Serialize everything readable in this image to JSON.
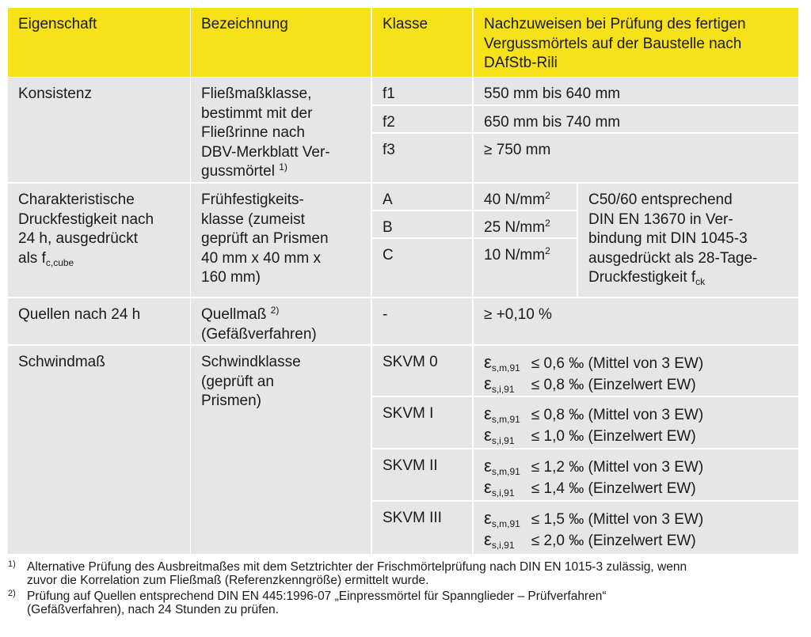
{
  "table": {
    "header": {
      "eigenschaft": [
        "Eigenschaft"
      ],
      "bezeichnung": [
        "Bezeichnung"
      ],
      "klasse": [
        "Klasse"
      ],
      "nachweis": [
        "Nachzuweisen bei Prüfung des fertigen",
        "Vergussmörtels auf der Baustelle nach",
        "DAfStb-Rili"
      ]
    },
    "konsistenz": {
      "eigenschaft": [
        "Konsistenz"
      ],
      "bezeichnung": [
        "Fließmaßklasse,",
        "bestimmt mit der",
        "Fließrinne nach",
        "DBV-Merkblatt Ver-",
        [
          "gussmörtel ",
          {
            "sup": "1)"
          }
        ]
      ],
      "klassen": [
        {
          "klasse": [
            "f1"
          ],
          "nachweis": [
            "550 mm bis 640 mm"
          ]
        },
        {
          "klasse": [
            "f2"
          ],
          "nachweis": [
            "650 mm bis 740 mm"
          ]
        },
        {
          "klasse": [
            "f3"
          ],
          "nachweis": [
            "≥ 750 mm"
          ]
        }
      ]
    },
    "druckfestigkeit": {
      "eigenschaft": [
        "Charakteristische",
        "Druckfestigkeit nach",
        "24 h, ausgedrückt",
        [
          "als f",
          {
            "sub": "c,cube"
          }
        ]
      ],
      "bezeichnung": [
        "Frühfestigkeits-",
        "klasse (zumeist",
        "geprüft an Prismen",
        "40 mm x 40 mm x",
        "160 mm)"
      ],
      "klassen": [
        {
          "klasse": [
            "A"
          ],
          "nachweis": [
            [
              "40 N/mm",
              {
                "sup": "2"
              }
            ]
          ]
        },
        {
          "klasse": [
            "B"
          ],
          "nachweis": [
            [
              "25 N/mm",
              {
                "sup": "2"
              }
            ]
          ]
        },
        {
          "klasse": [
            "C"
          ],
          "nachweis": [
            [
              "10 N/mm",
              {
                "sup": "2"
              }
            ]
          ]
        }
      ],
      "hinweis": [
        "C50/60 entsprechend",
        "DIN EN 13670 in Ver-",
        "bindung mit DIN 1045-3",
        "ausgedrückt als 28-Tage-",
        [
          "Druckfestigkeit f",
          {
            "sub": "ck"
          }
        ]
      ]
    },
    "quellen": {
      "eigenschaft": [
        "Quellen nach 24 h"
      ],
      "bezeichnung": [
        [
          "Quellmaß ",
          {
            "sup": "2)"
          }
        ],
        "(Gefäßverfahren)"
      ],
      "klassen": [
        {
          "klasse": [
            "-"
          ],
          "nachweis": [
            "≥ +0,10 %"
          ]
        }
      ]
    },
    "schwindmass": {
      "eigenschaft": [
        "Schwindmaß"
      ],
      "bezeichnung": [
        "Schwindklasse",
        "(geprüft an",
        "Prismen)"
      ],
      "klassen": [
        {
          "klasse": [
            "SKVM 0"
          ],
          "nachweis": [
            [
              "ε",
              {
                "sub": "s,m,91"
              },
              "≤ 0,6 ‰ (Mittel von 3 EW)"
            ],
            [
              "ε",
              {
                "sub": "s,i,91"
              },
              "≤ 0,8 ‰ (Einzelwert EW)"
            ]
          ]
        },
        {
          "klasse": [
            "SKVM I"
          ],
          "nachweis": [
            [
              "ε",
              {
                "sub": "s,m,91"
              },
              "≤ 0,8 ‰ (Mittel von 3 EW)"
            ],
            [
              "ε",
              {
                "sub": "s,i,91"
              },
              "≤ 1,0 ‰ (Einzelwert EW)"
            ]
          ]
        },
        {
          "klasse": [
            "SKVM II"
          ],
          "nachweis": [
            [
              "ε",
              {
                "sub": "s,m,91"
              },
              "≤ 1,2 ‰ (Mittel von 3 EW)"
            ],
            [
              "ε",
              {
                "sub": "s,i,91"
              },
              "≤ 1,4 ‰ (Einzelwert EW)"
            ]
          ]
        },
        {
          "klasse": [
            "SKVM III"
          ],
          "nachweis": [
            [
              "ε",
              {
                "sub": "s,m,91"
              },
              "≤ 1,5 ‰ (Mittel von 3 EW)"
            ],
            [
              "ε",
              {
                "sub": "s,i,91"
              },
              "≤ 2,0 ‰ (Einzelwert EW)"
            ]
          ]
        }
      ]
    }
  },
  "footnotes": [
    {
      "marker": "1)",
      "lines": [
        "Alternative Prüfung des Ausbreitmaßes mit dem Setztrichter der Frischmörtelprüfung nach DIN EN 1015-3 zulässig, wenn",
        "zuvor die Korrelation zum Fließmaß (Referenzkenngröße) ermittelt wurde."
      ]
    },
    {
      "marker": "2)",
      "lines": [
        "Prüfung auf Quellen entsprechend DIN EN 445:1996-07 „Einpressmörtel für Spannglieder – Prüfverfahren“",
        "(Gefäßverfahren), nach 24 Stunden zu prüfen."
      ]
    }
  ]
}
